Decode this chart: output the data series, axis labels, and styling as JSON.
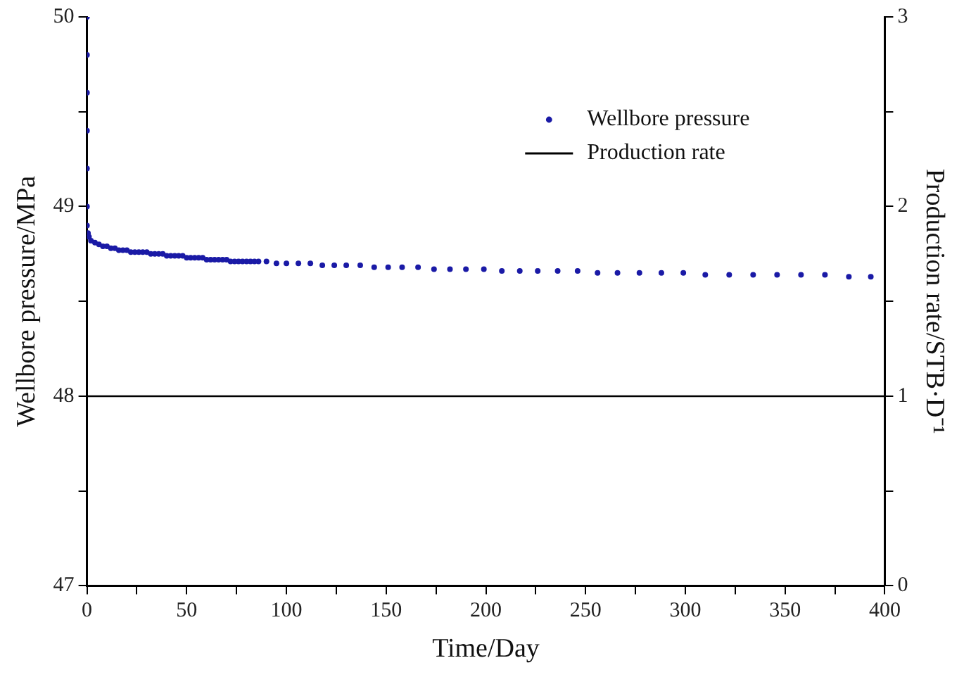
{
  "chart_data": {
    "type": "scatter",
    "xlabel": "Time/Day",
    "ylabel": "Wellbore pressure/MPa",
    "y2label": "Production rate/STB·D⁻¹",
    "xlim": [
      0,
      400
    ],
    "xticks": [
      0,
      {
        "value": 25,
        "label": null
      },
      50,
      {
        "value": 75,
        "label": null
      },
      100,
      {
        "value": 125,
        "label": null
      },
      150,
      {
        "value": 175,
        "label": null
      },
      200,
      {
        "value": 225,
        "label": null
      },
      250,
      {
        "value": 275,
        "label": null
      },
      300,
      {
        "value": 325,
        "label": null
      },
      350,
      {
        "value": 375,
        "label": null
      },
      400
    ],
    "ylim": [
      47,
      50
    ],
    "yticks": [
      47,
      {
        "value": 47.5,
        "label": null
      },
      48,
      {
        "value": 48.5,
        "label": null
      },
      49,
      {
        "value": 49.5,
        "label": null
      },
      50
    ],
    "y2lim": [
      0,
      3
    ],
    "y2ticks": [
      0,
      {
        "value": 0.5,
        "label": null
      },
      1,
      {
        "value": 1.5,
        "label": null
      },
      2,
      {
        "value": 2.5,
        "label": null
      },
      3
    ],
    "legend": "top right",
    "grid": false,
    "marker": "circle",
    "series": [
      {
        "name": "Wellbore pressure",
        "color": "#1a1aa6",
        "x": [
          0,
          0,
          0,
          0,
          0,
          0,
          0,
          0.5,
          1,
          2,
          4,
          6,
          8,
          10,
          12,
          14,
          16,
          18,
          20,
          22,
          24,
          26,
          28,
          30,
          32,
          34,
          36,
          38,
          40,
          42,
          44,
          46,
          48,
          50,
          52,
          54,
          56,
          58,
          60,
          62,
          64,
          66,
          68,
          70,
          72,
          74,
          76,
          78,
          80,
          82,
          84,
          86,
          90,
          95,
          100,
          106,
          112,
          118,
          124,
          130,
          137,
          144,
          151,
          158,
          166,
          174,
          182,
          190,
          199,
          208,
          217,
          226,
          236,
          246,
          256,
          266,
          277,
          288,
          299,
          310,
          322,
          334,
          346,
          358,
          370,
          382,
          393
        ],
        "values": [
          50,
          49.8,
          49.6,
          49.4,
          49.2,
          49.0,
          48.9,
          48.86,
          48.84,
          48.82,
          48.81,
          48.8,
          48.79,
          48.79,
          48.78,
          48.78,
          48.77,
          48.77,
          48.77,
          48.76,
          48.76,
          48.76,
          48.76,
          48.76,
          48.75,
          48.75,
          48.75,
          48.75,
          48.74,
          48.74,
          48.74,
          48.74,
          48.74,
          48.73,
          48.73,
          48.73,
          48.73,
          48.73,
          48.72,
          48.72,
          48.72,
          48.72,
          48.72,
          48.72,
          48.71,
          48.71,
          48.71,
          48.71,
          48.71,
          48.71,
          48.71,
          48.71,
          48.71,
          48.7,
          48.7,
          48.7,
          48.7,
          48.69,
          48.69,
          48.69,
          48.69,
          48.68,
          48.68,
          48.68,
          48.68,
          48.67,
          48.67,
          48.67,
          48.67,
          48.66,
          48.66,
          48.66,
          48.66,
          48.66,
          48.65,
          48.65,
          48.65,
          48.65,
          48.65,
          48.64,
          48.64,
          48.64,
          48.64,
          48.64,
          48.64,
          48.63,
          48.63
        ]
      },
      {
        "name": "Production rate",
        "type": "line",
        "axis": "y2",
        "color": "#000000",
        "marker": "none",
        "line_style": "solid",
        "x": [
          0,
          400
        ],
        "values": [
          1,
          1
        ]
      }
    ]
  }
}
